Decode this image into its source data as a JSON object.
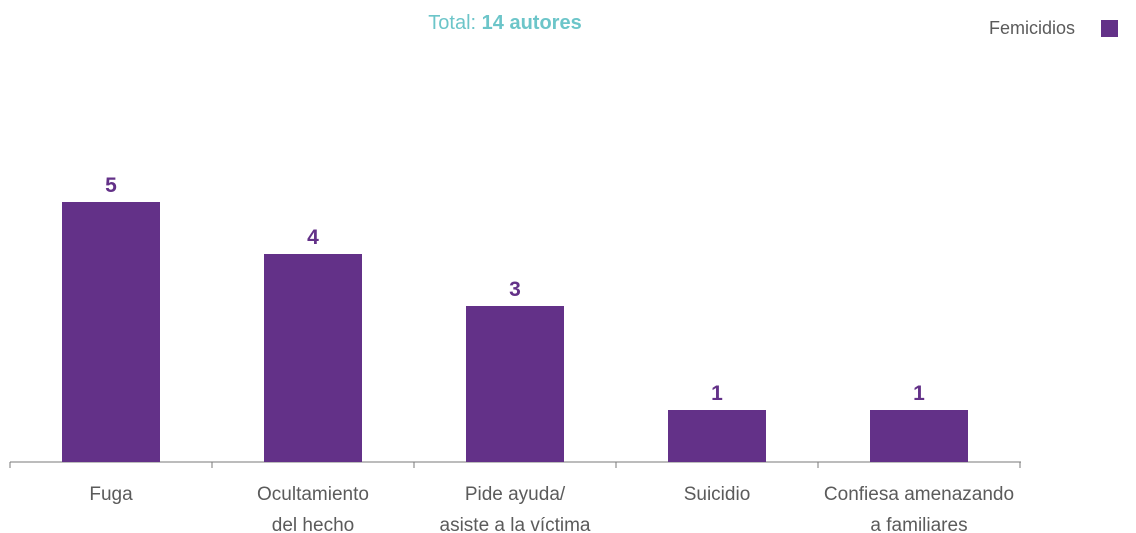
{
  "chart_data": {
    "type": "bar",
    "total_prefix": "Total: ",
    "total_value": "14 autores",
    "categories": [
      [
        "Fuga"
      ],
      [
        "Ocultamiento",
        "del hecho"
      ],
      [
        "Pide ayuda/",
        "asiste a la víctima"
      ],
      [
        "Suicidio"
      ],
      [
        "Confiesa amenazando",
        "a familiares"
      ]
    ],
    "series": [
      {
        "name": "Femicidios",
        "values": [
          5,
          4,
          3,
          1,
          1
        ]
      }
    ],
    "value_labels": [
      "5",
      "4",
      "3",
      "1",
      "1"
    ],
    "ylim": [
      0,
      5
    ],
    "legend_position": "top-right",
    "grid": false,
    "colors": {
      "bar": "#633188",
      "label": "#633188",
      "title_accent": "#6cc5c9",
      "axis": "#7a7a7a",
      "text": "#5b5b5b"
    }
  }
}
